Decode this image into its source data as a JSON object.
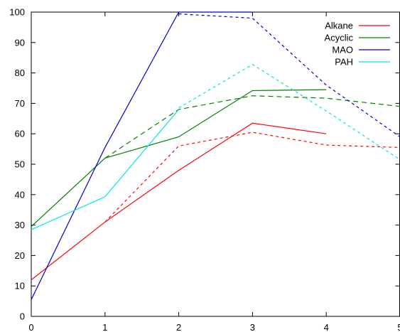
{
  "chart_data": {
    "type": "line",
    "title": "",
    "xlabel": "",
    "ylabel": "",
    "xlim": [
      0,
      5
    ],
    "ylim": [
      0,
      100
    ],
    "x_ticks": [
      "0",
      "1",
      "2",
      "3",
      "4",
      "5"
    ],
    "y_ticks": [
      "0",
      "10",
      "20",
      "30",
      "40",
      "50",
      "60",
      "70",
      "80",
      "90",
      "100"
    ],
    "grid": false,
    "legend_position": "top-right",
    "series": [
      {
        "name": "Alkane",
        "color": "#ff0000",
        "solid": {
          "x": [
            0,
            1,
            2,
            3,
            4
          ],
          "y": [
            12,
            31,
            48,
            63.5,
            60
          ]
        },
        "dashed": {
          "x": [
            1,
            2,
            3,
            4,
            5
          ],
          "y": [
            31,
            56,
            60.5,
            56.3,
            55.5
          ]
        }
      },
      {
        "name": "Acyclic",
        "color": "#008000",
        "solid": {
          "x": [
            0,
            1,
            2,
            3,
            4
          ],
          "y": [
            29.5,
            52,
            59,
            74.2,
            74.5
          ]
        },
        "dashed": {
          "x": [
            1,
            2,
            3,
            4,
            5
          ],
          "y": [
            52,
            68,
            72.5,
            71.7,
            69
          ]
        },
        "dashed_style": "dashes"
      },
      {
        "name": "MAO",
        "color": "#0000cc",
        "solid": {
          "x": [
            0,
            1,
            2,
            3
          ],
          "y": [
            5.5,
            55.5,
            100,
            100
          ]
        },
        "dashed": {
          "x": [
            2,
            3,
            4,
            5
          ],
          "y": [
            99.4,
            98,
            76,
            59
          ]
        }
      },
      {
        "name": "PAH",
        "color": "#00e5e5",
        "solid": {
          "x": [
            0,
            1,
            2
          ],
          "y": [
            28.5,
            39.3,
            68
          ]
        },
        "dashed": {
          "x": [
            2,
            3,
            4,
            5
          ],
          "y": [
            68.5,
            82.8,
            67.5,
            51.5
          ]
        }
      }
    ]
  }
}
